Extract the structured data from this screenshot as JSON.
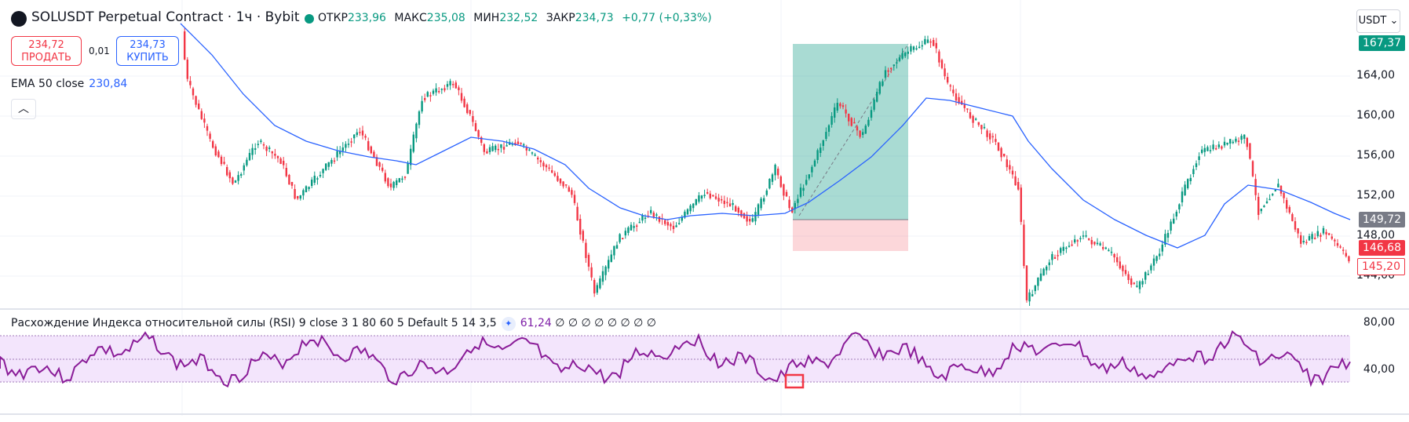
{
  "header": {
    "title": "SOLUSDT Perpetual Contract · 1ч · Bybit",
    "ohlc": [
      {
        "label": "ОТКР",
        "value": "233,96"
      },
      {
        "label": "МАКС",
        "value": "235,08"
      },
      {
        "label": "МИН",
        "value": "232,52"
      },
      {
        "label": "ЗАКР",
        "value": "234,73"
      }
    ],
    "change": "+0,77 (+0,33%)"
  },
  "trade": {
    "sell_price": "234,72",
    "sell_label": "ПРОДАТЬ",
    "spread": "0,01",
    "buy_price": "234,73",
    "buy_label": "КУПИТЬ"
  },
  "indicator": {
    "label": "EMA 50 close",
    "value": "230,84"
  },
  "currency": {
    "label": "USDT",
    "caret": "⌄"
  },
  "price_axis": {
    "ticks": [
      "164,00",
      "160,00",
      "156,00",
      "152,00",
      "148,00",
      "144,00"
    ],
    "tags": [
      {
        "text": "167,37",
        "color": "#089981"
      },
      {
        "text": "149,72",
        "color": "#787b86"
      },
      {
        "text": "146,68",
        "color": "#f23645"
      },
      {
        "text": "145,20",
        "color": "#f23645",
        "outline": true
      }
    ]
  },
  "rsi": {
    "legend": "Расхождение Индекса относительной силы (RSI) 9 close 3 1 80 60 5 Default 5 14 3,5",
    "value": "61,24",
    "extras": "∅ ∅ ∅ ∅ ∅ ∅ ∅ ∅",
    "ticks": [
      "80,00",
      "40,00"
    ]
  },
  "colors": {
    "up": "#089981",
    "down": "#f23645",
    "ema": "#2962ff",
    "rsi": "#7e1fa7",
    "rsi_band": "#f3e5fc"
  }
}
